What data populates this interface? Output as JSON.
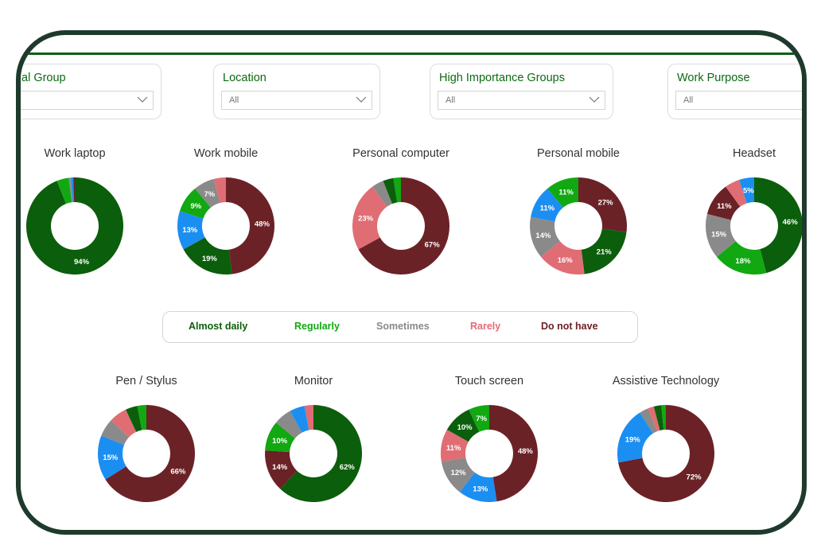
{
  "filters": [
    {
      "title": "al Group",
      "value": ""
    },
    {
      "title": "Location",
      "value": "All"
    },
    {
      "title": "High Importance Groups",
      "value": "All"
    },
    {
      "title": "Work Purpose",
      "value": "All"
    }
  ],
  "colors": {
    "almost_daily": "#0b5e0b",
    "regularly": "#11a811",
    "sometimes": "#8a8a8a",
    "rarely": "#e06d74",
    "do_not_have": "#6b2226",
    "blue": "#1b8ef2",
    "label": "#ffffff"
  },
  "legend": [
    {
      "label": "Almost daily",
      "color": "#0b5e0b"
    },
    {
      "label": "Regularly",
      "color": "#11a811"
    },
    {
      "label": "Sometimes",
      "color": "#8a8a8a"
    },
    {
      "label": "Rarely",
      "color": "#e06d74"
    },
    {
      "label": "Do not have",
      "color": "#6b2226"
    }
  ],
  "chart_data": [
    {
      "type": "pie",
      "title": "Work laptop",
      "slices": [
        {
          "value": 94,
          "color": "#0b5e0b",
          "label": "94%"
        },
        {
          "value": 4,
          "color": "#11a811",
          "label": ""
        },
        {
          "value": 0.7,
          "color": "#8a8a8a",
          "label": ""
        },
        {
          "value": 0.8,
          "color": "#1b8ef2",
          "label": ""
        },
        {
          "value": 0.5,
          "color": "#6b2226",
          "label": ""
        }
      ]
    },
    {
      "type": "pie",
      "title": "Work mobile",
      "slices": [
        {
          "value": 48,
          "color": "#6b2226",
          "label": "48%"
        },
        {
          "value": 19,
          "color": "#0b5e0b",
          "label": "19%"
        },
        {
          "value": 13,
          "color": "#1b8ef2",
          "label": "13%"
        },
        {
          "value": 9,
          "color": "#11a811",
          "label": "9%"
        },
        {
          "value": 7,
          "color": "#8a8a8a",
          "label": "7%"
        },
        {
          "value": 4,
          "color": "#e06d74",
          "label": ""
        }
      ]
    },
    {
      "type": "pie",
      "title": "Personal computer",
      "slices": [
        {
          "value": 67,
          "color": "#6b2226",
          "label": "67%"
        },
        {
          "value": 23,
          "color": "#e06d74",
          "label": "23%"
        },
        {
          "value": 4,
          "color": "#8a8a8a",
          "label": ""
        },
        {
          "value": 3.5,
          "color": "#0b5e0b",
          "label": ""
        },
        {
          "value": 2.5,
          "color": "#11a811",
          "label": ""
        }
      ]
    },
    {
      "type": "pie",
      "title": "Personal mobile",
      "slices": [
        {
          "value": 27,
          "color": "#6b2226",
          "label": "27%"
        },
        {
          "value": 21,
          "color": "#0b5e0b",
          "label": "21%"
        },
        {
          "value": 16,
          "color": "#e06d74",
          "label": "16%"
        },
        {
          "value": 14,
          "color": "#8a8a8a",
          "label": "14%"
        },
        {
          "value": 11,
          "color": "#1b8ef2",
          "label": "11%"
        },
        {
          "value": 11,
          "color": "#11a811",
          "label": "11%"
        }
      ]
    },
    {
      "type": "pie",
      "title": "Headset",
      "slices": [
        {
          "value": 46,
          "color": "#0b5e0b",
          "label": "46%"
        },
        {
          "value": 18,
          "color": "#11a811",
          "label": "18%"
        },
        {
          "value": 15,
          "color": "#8a8a8a",
          "label": "15%"
        },
        {
          "value": 11,
          "color": "#6b2226",
          "label": "11%"
        },
        {
          "value": 5,
          "color": "#e06d74",
          "label": ""
        },
        {
          "value": 5,
          "color": "#1b8ef2",
          "label": "5%"
        }
      ]
    },
    {
      "type": "pie",
      "title": "Pen / Stylus",
      "slices": [
        {
          "value": 66,
          "color": "#6b2226",
          "label": "66%"
        },
        {
          "value": 15,
          "color": "#1b8ef2",
          "label": "15%"
        },
        {
          "value": 6,
          "color": "#8a8a8a",
          "label": ""
        },
        {
          "value": 6,
          "color": "#e06d74",
          "label": ""
        },
        {
          "value": 4,
          "color": "#0b5e0b",
          "label": ""
        },
        {
          "value": 3,
          "color": "#11a811",
          "label": ""
        }
      ]
    },
    {
      "type": "pie",
      "title": "Monitor",
      "slices": [
        {
          "value": 62,
          "color": "#0b5e0b",
          "label": "62%"
        },
        {
          "value": 14,
          "color": "#6b2226",
          "label": "14%"
        },
        {
          "value": 10,
          "color": "#11a811",
          "label": "10%"
        },
        {
          "value": 6,
          "color": "#8a8a8a",
          "label": ""
        },
        {
          "value": 5,
          "color": "#1b8ef2",
          "label": ""
        },
        {
          "value": 3,
          "color": "#e06d74",
          "label": ""
        }
      ]
    },
    {
      "type": "pie",
      "title": "Touch screen",
      "slices": [
        {
          "value": 48,
          "color": "#6b2226",
          "label": "48%"
        },
        {
          "value": 13,
          "color": "#1b8ef2",
          "label": "13%"
        },
        {
          "value": 12,
          "color": "#8a8a8a",
          "label": "12%"
        },
        {
          "value": 11,
          "color": "#e06d74",
          "label": "11%"
        },
        {
          "value": 10,
          "color": "#0b5e0b",
          "label": "10%"
        },
        {
          "value": 7,
          "color": "#11a811",
          "label": "7%"
        }
      ]
    },
    {
      "type": "pie",
      "title": "Assistive Technology",
      "slices": [
        {
          "value": 72,
          "color": "#6b2226",
          "label": "72%"
        },
        {
          "value": 19,
          "color": "#1b8ef2",
          "label": "19%"
        },
        {
          "value": 3,
          "color": "#8a8a8a",
          "label": ""
        },
        {
          "value": 2,
          "color": "#e06d74",
          "label": ""
        },
        {
          "value": 2.5,
          "color": "#0b5e0b",
          "label": ""
        },
        {
          "value": 1.5,
          "color": "#11a811",
          "label": ""
        }
      ]
    }
  ]
}
